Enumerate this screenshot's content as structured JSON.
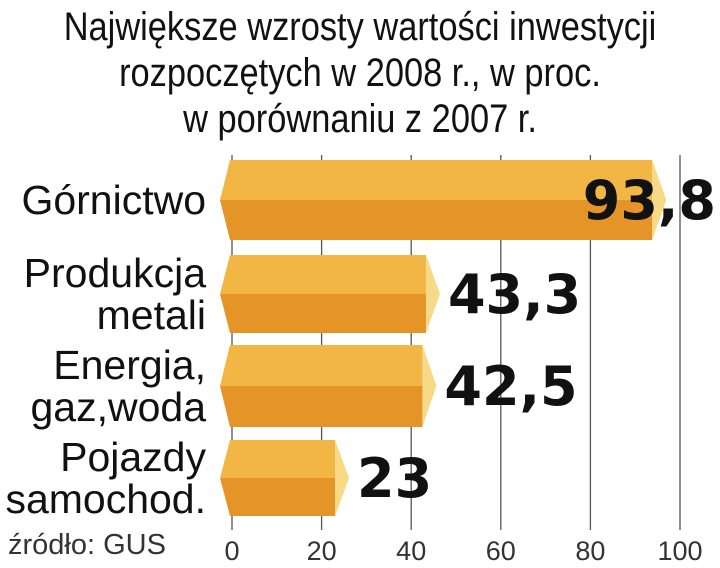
{
  "chart_data": {
    "type": "bar",
    "orientation": "horizontal",
    "title": [
      "Największe wzrosty wartości inwestycji",
      "rozpoczętych w 2008 r., w proc.",
      "w porównaniu z 2007 r."
    ],
    "categories": [
      [
        "Górnictwo"
      ],
      [
        "Produkcja",
        "metali"
      ],
      [
        "Energia,",
        "gaz,woda"
      ],
      [
        "Pojazdy",
        "samochod."
      ]
    ],
    "values": [
      93.8,
      43.3,
      42.5,
      23
    ],
    "value_labels": [
      "93,8",
      "43,3",
      "42,5",
      "23"
    ],
    "xlim": [
      0,
      100
    ],
    "xticks": [
      "0",
      "20",
      "40",
      "60",
      "80",
      "100"
    ],
    "grid": true,
    "source": "źródło: GUS",
    "colors": {
      "bar_top": "#F2B645",
      "bar_bottom": "#E59428",
      "cap": "#F8D986",
      "grid": "#555555"
    }
  }
}
